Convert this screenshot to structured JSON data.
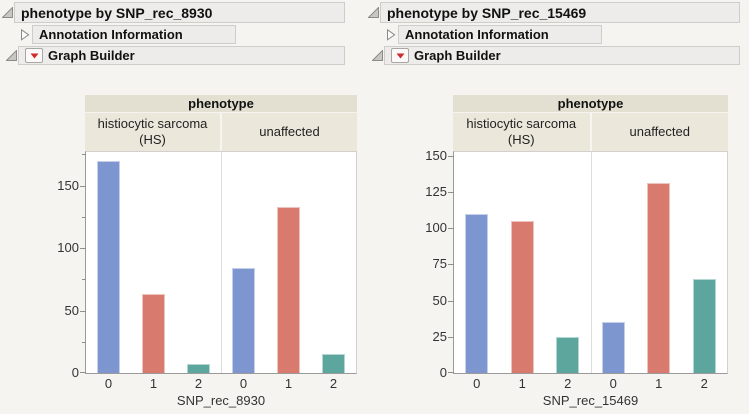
{
  "panels": [
    {
      "title": "phenotype by SNP_rec_8930",
      "annotation": {
        "label": "Annotation Information"
      },
      "graph_builder": {
        "label": "Graph Builder"
      }
    },
    {
      "title": "phenotype by SNP_rec_15469",
      "annotation": {
        "label": "Annotation Information"
      },
      "graph_builder": {
        "label": "Graph Builder"
      }
    }
  ],
  "icons": {
    "disclosure-open-icon": "gray filled corner triangle (expanded outline node)",
    "disclosure-collapsed-icon": "hollow right-pointing triangle (collapsed outline node)",
    "red-triangle-menu-icon": "red down-triangle menu button"
  },
  "colors": {
    "bar_blue": "#7E96CF",
    "bar_red": "#D87B6E",
    "bar_teal": "#5CA69D",
    "header_band": "#E4E0D1",
    "subheader_band": "#EBE8DB",
    "outline_bar_bg": "#EDECEA",
    "page_bg": "#F5F4F1",
    "red_triangle": "#D22B2B"
  },
  "chart_data": [
    {
      "type": "bar",
      "title": "phenotype",
      "groups": [
        "histiocytic sarcoma (HS)",
        "unaffected"
      ],
      "categories": [
        "0",
        "1",
        "2"
      ],
      "series": [
        {
          "name": "histiocytic sarcoma (HS)",
          "values": [
            170,
            63,
            7
          ]
        },
        {
          "name": "unaffected",
          "values": [
            84,
            133,
            15
          ]
        }
      ],
      "xlabel": "SNP_rec_8930",
      "ylabel": "",
      "ylim": [
        0,
        177
      ],
      "yticks": [
        0,
        50,
        100,
        150
      ],
      "minor_yticks": [
        25,
        75,
        125,
        175
      ],
      "bar_colors": [
        "#7E96CF",
        "#D87B6E",
        "#5CA69D"
      ],
      "grid": false,
      "legend": false
    },
    {
      "type": "bar",
      "title": "phenotype",
      "groups": [
        "histiocytic sarcoma (HS)",
        "unaffected"
      ],
      "categories": [
        "0",
        "1",
        "2"
      ],
      "series": [
        {
          "name": "histiocytic sarcoma (HS)",
          "values": [
            110,
            105,
            25
          ]
        },
        {
          "name": "unaffected",
          "values": [
            35,
            131,
            65
          ]
        }
      ],
      "xlabel": "SNP_rec_15469",
      "ylabel": "",
      "ylim": [
        0,
        152.5
      ],
      "yticks": [
        0,
        25,
        50,
        75,
        100,
        125,
        150
      ],
      "minor_yticks": [],
      "bar_colors": [
        "#7E96CF",
        "#D87B6E",
        "#5CA69D"
      ],
      "grid": false,
      "legend": false
    }
  ]
}
